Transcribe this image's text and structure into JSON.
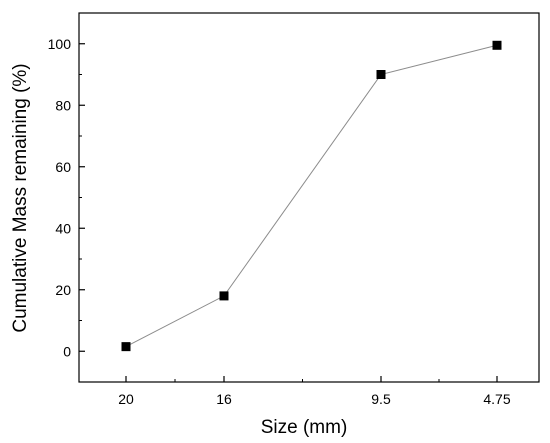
{
  "chart_data": {
    "type": "line",
    "title": "",
    "xlabel": "Size (mm)",
    "ylabel": "Cumulative Mass remaining (%)",
    "categories": [
      "20",
      "16",
      "9.5",
      "4.75"
    ],
    "series": [
      {
        "values": [
          1.5,
          18,
          90,
          99.5
        ]
      }
    ],
    "ylim": [
      -10,
      110
    ],
    "yticks": [
      "0",
      "20",
      "40",
      "60",
      "80",
      "100"
    ],
    "grid": false,
    "legend": "none",
    "marker": "square",
    "colors": {
      "line": "#8c8c8c",
      "marker": "#000000",
      "axis": "#000000"
    }
  }
}
